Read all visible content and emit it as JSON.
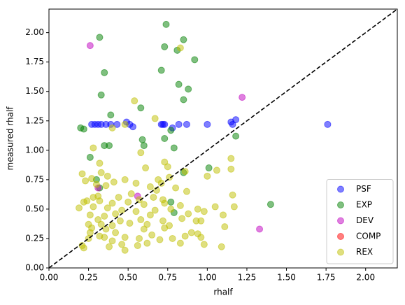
{
  "chart_data": {
    "type": "scatter",
    "xlabel": "rhalf",
    "ylabel": "measured rhalf",
    "xlim": [
      0,
      2.2
    ],
    "ylim": [
      0,
      2.2
    ],
    "xticks": [
      {
        "value": 0,
        "label": "0.00"
      },
      {
        "value": 0.25,
        "label": "0.25"
      },
      {
        "value": 0.5,
        "label": "0.50"
      },
      {
        "value": 0.75,
        "label": "0.75"
      },
      {
        "value": 1,
        "label": "1.00"
      },
      {
        "value": 1.25,
        "label": "1.25"
      },
      {
        "value": 1.5,
        "label": "1.50"
      },
      {
        "value": 1.75,
        "label": "1.75"
      },
      {
        "value": 2,
        "label": "2.00"
      }
    ],
    "yticks": [
      {
        "value": 0,
        "label": "0.00"
      },
      {
        "value": 0.25,
        "label": "0.25"
      },
      {
        "value": 0.5,
        "label": "0.50"
      },
      {
        "value": 0.75,
        "label": "0.75"
      },
      {
        "value": 1,
        "label": "1.00"
      },
      {
        "value": 1.25,
        "label": "1.25"
      },
      {
        "value": 1.5,
        "label": "1.50"
      },
      {
        "value": 1.75,
        "label": "1.75"
      },
      {
        "value": 2,
        "label": "2.00"
      }
    ],
    "diagonal": true,
    "legend": "lower right",
    "opacity": 0.5,
    "series": [
      {
        "name": "PSF",
        "color": "#0000ff",
        "x": [
          0.27,
          0.29,
          0.31,
          0.33,
          0.36,
          0.39,
          0.43,
          0.49,
          0.51,
          0.53,
          0.71,
          0.72,
          0.73,
          0.78,
          0.82,
          0.87,
          1.0,
          1.15,
          1.16,
          1.18,
          1.76
        ],
        "y": [
          1.22,
          1.22,
          1.22,
          1.22,
          1.22,
          1.22,
          1.22,
          1.24,
          1.22,
          1.2,
          1.22,
          1.22,
          1.22,
          1.19,
          1.22,
          1.22,
          1.22,
          1.24,
          1.22,
          1.26,
          1.22
        ]
      },
      {
        "name": "EXP",
        "color": "#008000",
        "x": [
          0.32,
          0.74,
          0.85,
          0.73,
          0.81,
          0.92,
          0.71,
          0.35,
          0.82,
          0.88,
          0.33,
          0.85,
          0.58,
          0.39,
          0.2,
          0.22,
          0.77,
          1.18,
          0.59,
          0.73,
          0.79,
          0.35,
          0.38,
          0.6,
          0.26,
          1.01,
          0.85,
          0.3,
          0.32,
          0.77,
          1.4,
          0.79
        ],
        "y": [
          1.96,
          2.07,
          1.94,
          1.88,
          1.85,
          1.77,
          1.68,
          1.66,
          1.56,
          1.52,
          1.47,
          1.43,
          1.36,
          1.3,
          1.19,
          1.18,
          1.17,
          1.12,
          1.09,
          1.1,
          1.02,
          1.04,
          1.04,
          1.04,
          0.94,
          0.85,
          0.81,
          0.75,
          0.68,
          0.56,
          0.54,
          0.47
        ]
      },
      {
        "name": "DEV",
        "color": "#bf00bf",
        "x": [
          0.26,
          1.22,
          0.31,
          0.56,
          1.33
        ],
        "y": [
          1.89,
          1.45,
          0.68,
          0.61,
          0.33
        ]
      },
      {
        "name": "COMP",
        "color": "#ff0000",
        "x": [],
        "y": []
      },
      {
        "name": "REX",
        "color": "#bfbf00",
        "x": [
          0.83,
          0.54,
          0.67,
          0.48,
          0.4,
          0.58,
          0.28,
          0.73,
          1.15,
          0.32,
          0.75,
          0.61,
          1.06,
          1.15,
          0.21,
          0.33,
          0.37,
          0.27,
          0.23,
          0.48,
          0.55,
          0.41,
          0.69,
          0.86,
          1.0,
          0.76,
          0.3,
          0.36,
          0.71,
          0.64,
          0.8,
          0.52,
          0.68,
          0.87,
          1.16,
          0.28,
          0.44,
          0.66,
          0.72,
          0.24,
          0.32,
          0.4,
          0.5,
          0.6,
          0.73,
          0.83,
          1.17,
          0.19,
          0.28,
          0.37,
          0.46,
          0.55,
          0.67,
          0.77,
          0.94,
          1.05,
          1.1,
          0.26,
          0.35,
          0.42,
          0.64,
          0.88,
          0.98,
          0.31,
          0.45,
          0.58,
          0.72,
          0.84,
          0.93,
          0.25,
          0.33,
          0.4,
          0.51,
          0.62,
          0.76,
          0.96,
          1.11,
          0.27,
          0.36,
          0.6,
          0.73,
          0.9,
          0.94,
          0.26,
          0.32,
          0.42,
          0.48,
          0.57,
          0.65,
          0.78,
          0.86,
          0.96,
          0.25,
          0.35,
          0.4,
          0.62,
          0.7,
          0.83,
          0.21,
          0.22,
          0.38,
          0.46,
          0.48,
          0.56,
          0.98,
          1.09,
          0.31,
          0.57,
          0.22
        ],
        "y": [
          1.87,
          1.42,
          1.27,
          1.22,
          1.19,
          0.98,
          1.02,
          0.9,
          0.93,
          0.89,
          0.86,
          0.85,
          0.83,
          0.84,
          0.8,
          0.81,
          0.78,
          0.76,
          0.74,
          0.75,
          0.72,
          0.73,
          0.75,
          0.82,
          0.78,
          0.77,
          0.71,
          0.7,
          0.72,
          0.69,
          0.68,
          0.63,
          0.66,
          0.65,
          0.62,
          0.6,
          0.6,
          0.6,
          0.58,
          0.57,
          0.57,
          0.55,
          0.56,
          0.54,
          0.55,
          0.53,
          0.52,
          0.51,
          0.52,
          0.51,
          0.49,
          0.48,
          0.49,
          0.5,
          0.5,
          0.52,
          0.45,
          0.45,
          0.44,
          0.46,
          0.45,
          0.46,
          0.48,
          0.41,
          0.4,
          0.41,
          0.4,
          0.42,
          0.4,
          0.37,
          0.37,
          0.36,
          0.38,
          0.37,
          0.36,
          0.4,
          0.35,
          0.34,
          0.33,
          0.33,
          0.34,
          0.3,
          0.29,
          0.3,
          0.27,
          0.3,
          0.26,
          0.25,
          0.28,
          0.25,
          0.27,
          0.26,
          0.25,
          0.26,
          0.23,
          0.21,
          0.24,
          0.21,
          0.19,
          0.17,
          0.18,
          0.2,
          0.15,
          0.19,
          0.2,
          0.18,
          0.61,
          0.58,
          0.56
        ]
      }
    ]
  }
}
